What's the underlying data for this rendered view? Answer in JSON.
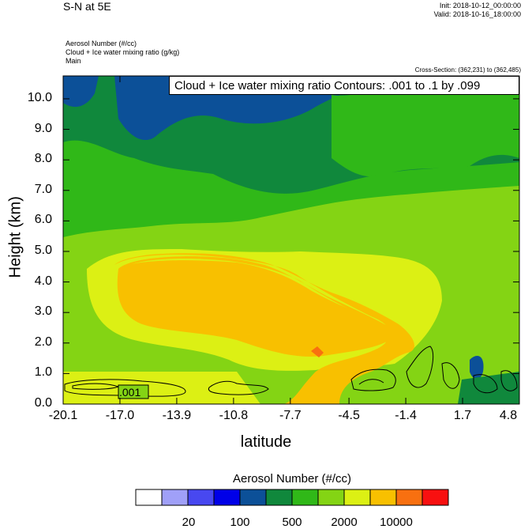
{
  "header": {
    "title": "S-N at 5E",
    "init": "Init: 2018-10-12_00:00:00",
    "valid": "Valid: 2018-10-16_18:00:00",
    "subtitle1": "Aerosol Number   (#/cc)",
    "subtitle2": "Cloud + Ice water mixing ratio   (g/kg)",
    "subtitle3": "Main",
    "cross_section": "Cross-Section: (362,231) to (362,485)",
    "contour_info": "Cloud + Ice water mixing ratio Contours: .001 to .1 by .099"
  },
  "chart_data": {
    "type": "heatmap",
    "xlabel": "latitude",
    "ylabel": "Height (km)",
    "x_ticks": [
      "-20.1",
      "-17.0",
      "-13.9",
      "-10.8",
      "-7.7",
      "-4.5",
      "-1.4",
      "1.7",
      "4.8"
    ],
    "y_ticks": [
      "0.0",
      "1.0",
      "2.0",
      "3.0",
      "4.0",
      "5.0",
      "6.0",
      "7.0",
      "8.0",
      "9.0",
      "10.0"
    ],
    "xlim": [
      -20.1,
      4.8
    ],
    "ylim": [
      0.0,
      10.75
    ],
    "colorbar": {
      "title": "Aerosol Number  (#/cc)",
      "colors": [
        "#ffffff",
        "#a0a0f8",
        "#4848f0",
        "#0000e8",
        "#0c5098",
        "#10883c",
        "#30b818",
        "#84d414",
        "#dcf014",
        "#f8c000",
        "#f87010",
        "#f81010"
      ],
      "labels": [
        "20",
        "100",
        "500",
        "2000",
        "10000"
      ]
    },
    "contour_label": ".001"
  }
}
